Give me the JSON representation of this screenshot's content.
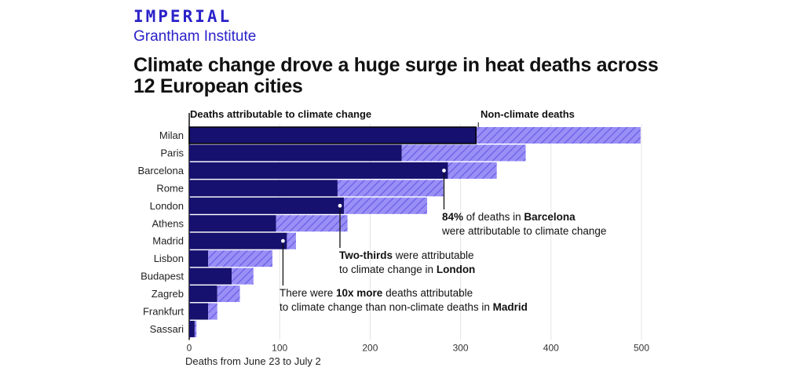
{
  "brand": {
    "name": "IMPERIAL",
    "subtitle": "Grantham Institute"
  },
  "title": "Climate change drove a huge surge in heat deaths across 12 European cities",
  "colors": {
    "climate": "#16106e",
    "hatch_bg": "#9a8ff5",
    "hatch_line": "#6a5ee8",
    "brand": "#2b22c9"
  },
  "chart_data": {
    "type": "bar",
    "orientation": "horizontal",
    "stacked": true,
    "categories": [
      "Milan",
      "Paris",
      "Barcelona",
      "Rome",
      "London",
      "Athens",
      "Madrid",
      "Lisbon",
      "Budapest",
      "Zagreb",
      "Frankfurt",
      "Sassari"
    ],
    "series": [
      {
        "name": "Deaths attributable to climate change",
        "values": [
          317,
          235,
          286,
          164,
          171,
          96,
          108,
          21,
          47,
          31,
          21,
          6
        ]
      },
      {
        "name": "Non-climate deaths",
        "values": [
          182,
          137,
          54,
          117,
          92,
          79,
          10,
          71,
          24,
          25,
          10,
          2
        ]
      }
    ],
    "xlim": [
      0,
      500
    ],
    "xticks": [
      0,
      100,
      200,
      300,
      400,
      500
    ],
    "xlabel": "Deaths from June 23 to July 2",
    "grid": "vertical",
    "annotations": [
      {
        "city": "Barcelona",
        "pre": "",
        "bold1": "84%",
        "mid": " of deaths in ",
        "bold2": "Barcelona",
        "line2": "were attributable to climate change"
      },
      {
        "city": "London",
        "pre": "",
        "bold1": "Two-thirds",
        "mid": " were attributable",
        "line2_pre": "to climate change in ",
        "bold2": "London"
      },
      {
        "city": "Madrid",
        "pre": "There were ",
        "bold1": "10x more",
        "mid": " deaths attributable",
        "line2_pre": "to climate change than non-climate deaths in ",
        "bold2": "Madrid"
      }
    ]
  }
}
